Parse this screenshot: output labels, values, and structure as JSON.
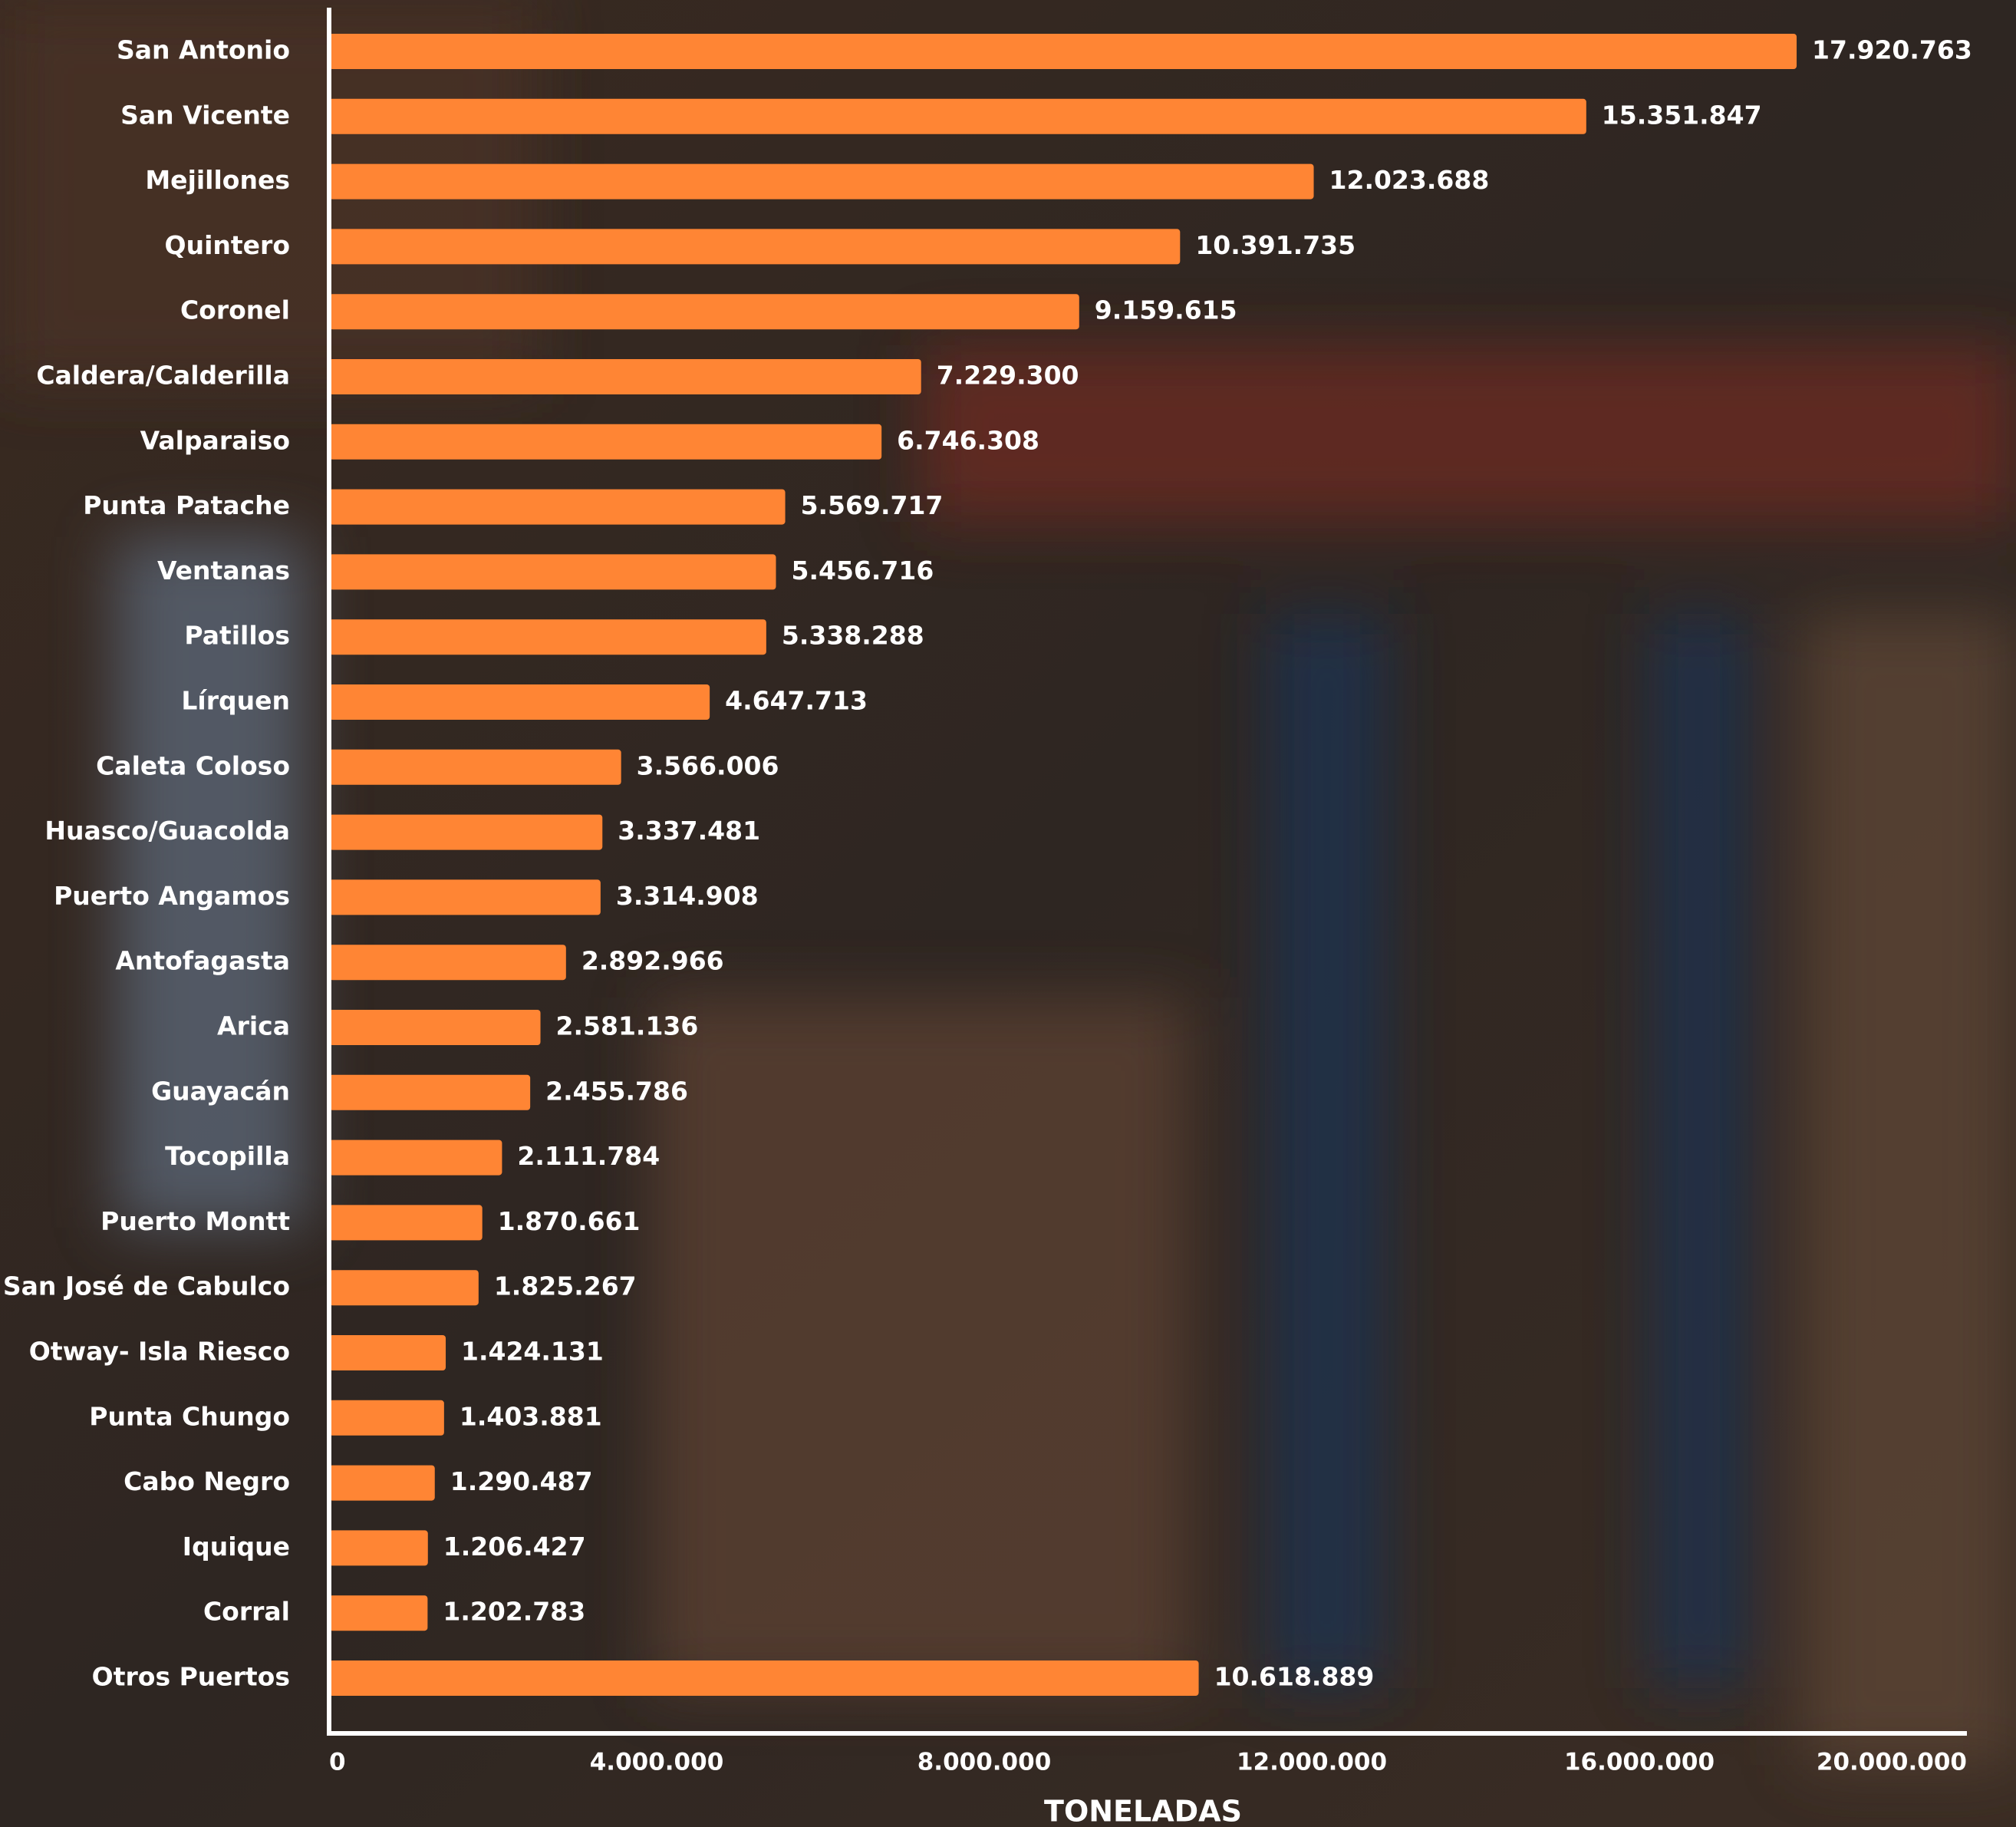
{
  "chart_data": {
    "type": "barh",
    "categories": [
      "San Antonio",
      "San Vicente",
      "Mejillones",
      "Quintero",
      "Coronel",
      "Caldera/Calderilla",
      "Valparaiso",
      "Punta Patache",
      "Ventanas",
      "Patillos",
      "Lírquen",
      "Caleta Coloso",
      "Huasco/Guacolda",
      "Puerto Angamos",
      "Antofagasta",
      "Arica",
      "Guayacán",
      "Tocopilla",
      "Puerto Montt",
      "San José de Cabulco",
      "Otway- Isla Riesco",
      "Punta Chungo",
      "Cabo Negro",
      "Iquique",
      "Corral",
      "Otros Puertos"
    ],
    "values": [
      17920763,
      15351847,
      12023688,
      10391735,
      9159615,
      7229300,
      6746308,
      5569717,
      5456716,
      5338288,
      4647713,
      3566006,
      3337481,
      3314908,
      2892966,
      2581136,
      2455786,
      2111784,
      1870661,
      1825267,
      1424131,
      1403881,
      1290487,
      1206427,
      1202783,
      10618889
    ],
    "value_labels": [
      "17.920.763",
      "15.351.847",
      "12.023.688",
      "10.391.735",
      "9.159.615",
      "7.229.300",
      "6.746.308",
      "5.569.717",
      "5.456.716",
      "5.338.288",
      "4.647.713",
      "3.566.006",
      "3.337.481",
      "3.314.908",
      "2.892.966",
      "2.581.136",
      "2.455.786",
      "2.111.784",
      "1.870.661",
      "1.825.267",
      "1.424.131",
      "1.403.881",
      "1.290.487",
      "1.206.427",
      "1.202.783",
      "10.618.889"
    ],
    "color": "#ff8534",
    "xlim": [
      0,
      20000000
    ],
    "xticks": [
      0,
      {
        "value": 4000000,
        "label": "4.000.000"
      },
      {
        "value": 8000000,
        "label": "8.000.000"
      },
      {
        "value": 12000000,
        "label": "12.000.000"
      },
      {
        "value": 16000000,
        "label": "16.000.000"
      },
      {
        "value": 20000000,
        "label": "20.000.000"
      }
    ],
    "xlabel": "TONELADAS"
  }
}
